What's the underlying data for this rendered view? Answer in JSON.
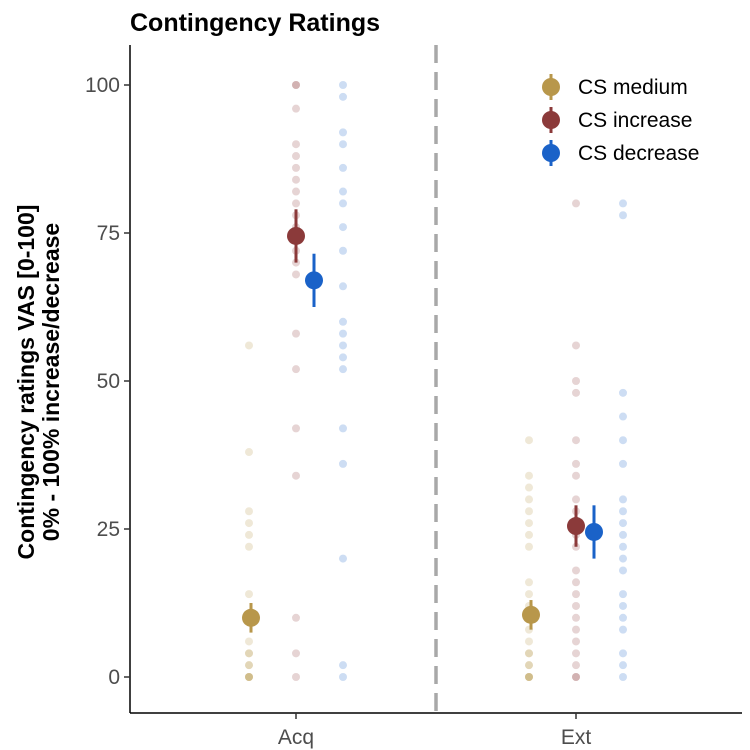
{
  "chart_data": {
    "type": "scatter",
    "title": "Contingency Ratings",
    "ylabel_line1": "Contingency ratings VAS [0-100]",
    "ylabel_line2": "0% - 100% increase/decrease",
    "xlabel": "",
    "categories": [
      "Acq",
      "Ext"
    ],
    "ylim": [
      -6,
      106
    ],
    "yticks": [
      0,
      25,
      50,
      75,
      100
    ],
    "yticklabels": [
      "0",
      "25",
      "50",
      "75",
      "100"
    ],
    "divider": "dashed vertical line between Acq and Ext",
    "legend_position": "top-right",
    "series": [
      {
        "name": "CS medium",
        "color": "#b8974b",
        "means": [
          10,
          10.5
        ],
        "errors": [
          2.5,
          2.5
        ],
        "points": [
          [
            0,
            0,
            0,
            0,
            2,
            2,
            4,
            4,
            6,
            14,
            22,
            24,
            26,
            28,
            38,
            56
          ],
          [
            0,
            0,
            0,
            0,
            2,
            2,
            4,
            4,
            6,
            8,
            10,
            12,
            14,
            16,
            22,
            24,
            26,
            28,
            30,
            32,
            34,
            40
          ]
        ]
      },
      {
        "name": "CS increase",
        "color": "#8b3a3a",
        "means": [
          74.5,
          25.5
        ],
        "errors": [
          4.5,
          3.5
        ],
        "points": [
          [
            0,
            4,
            10,
            34,
            42,
            52,
            58,
            68,
            70,
            72,
            76,
            78,
            80,
            82,
            84,
            86,
            88,
            90,
            96,
            100,
            100
          ],
          [
            0,
            0,
            2,
            4,
            6,
            8,
            10,
            12,
            14,
            16,
            18,
            22,
            24,
            26,
            28,
            30,
            34,
            36,
            40,
            48,
            50,
            56,
            80
          ]
        ]
      },
      {
        "name": "CS decrease",
        "color": "#1a62c8",
        "means": [
          67,
          24.5
        ],
        "errors": [
          4.5,
          4.5
        ],
        "points": [
          [
            0,
            2,
            20,
            36,
            42,
            52,
            54,
            56,
            58,
            60,
            66,
            72,
            76,
            80,
            82,
            86,
            90,
            92,
            98,
            100
          ],
          [
            0,
            2,
            4,
            8,
            10,
            12,
            14,
            18,
            20,
            22,
            24,
            26,
            28,
            30,
            36,
            40,
            44,
            48,
            78,
            80
          ]
        ]
      }
    ]
  }
}
